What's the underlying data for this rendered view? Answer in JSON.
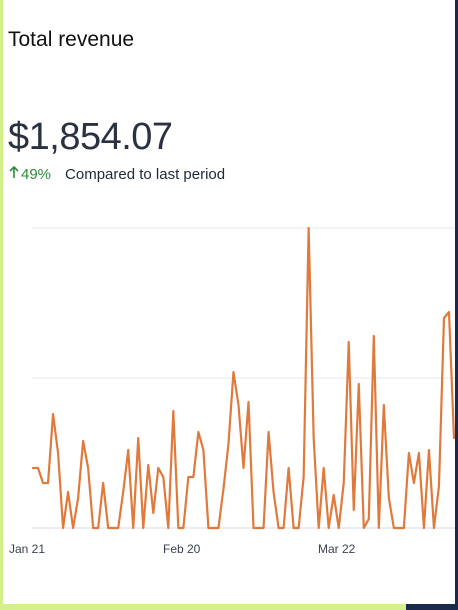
{
  "header": {
    "title": "Total revenue",
    "total": "$1,854.07",
    "change": "49%",
    "change_icon": "arrow-up-icon",
    "comparison_label": "Compared to last period"
  },
  "colors": {
    "series_line": "#e07a3c",
    "positive_change": "#2e8b3a",
    "gridline": "#e5e7eb",
    "frame_left": "#d4f08a",
    "frame_right": "#1b2a4a"
  },
  "chart_data": {
    "type": "line",
    "title": "",
    "xlabel": "",
    "ylabel": "",
    "grid": true,
    "x_tick_labels": [
      "Jan 21",
      "Feb 20",
      "Mar 22"
    ],
    "ylim": [
      0,
      100
    ],
    "series": [
      {
        "values": [
          20,
          20,
          15,
          15,
          38,
          25,
          0,
          12,
          0,
          10,
          29,
          20,
          0,
          0,
          15,
          0,
          0,
          0,
          12,
          26,
          0,
          30,
          0,
          21,
          5,
          20,
          17,
          0,
          39,
          0,
          0,
          17,
          17,
          32,
          26,
          0,
          0,
          0,
          13,
          28,
          52,
          41,
          20,
          42,
          0,
          0,
          0,
          32,
          12,
          0,
          0,
          20,
          0,
          0,
          17,
          100,
          30,
          0,
          20,
          0,
          11,
          0,
          15,
          62,
          6,
          48,
          0,
          3,
          64,
          0,
          41,
          10,
          0,
          0,
          0,
          25,
          15,
          25,
          0,
          26,
          0,
          14,
          70,
          72,
          30
        ]
      }
    ]
  }
}
